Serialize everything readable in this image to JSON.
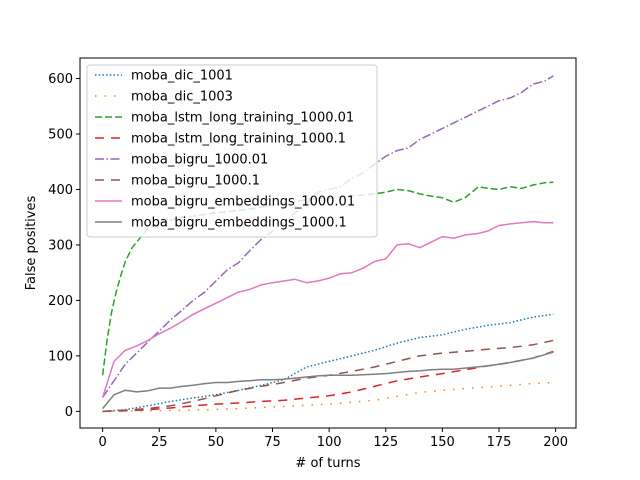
{
  "chart_data": {
    "type": "line",
    "title": "",
    "xlabel": "# of turns",
    "ylabel": "False positives",
    "xlim": [
      -10,
      209
    ],
    "ylim": [
      -30,
      637
    ],
    "xticks": [
      0,
      25,
      50,
      75,
      100,
      125,
      150,
      175,
      200
    ],
    "yticks": [
      0,
      100,
      200,
      300,
      400,
      500,
      600
    ],
    "grid": false,
    "legend_position": "upper-left",
    "series": [
      {
        "name": "moba_dic_1001",
        "color": "#1f77b4",
        "style": "dotted",
        "x": [
          0,
          10,
          20,
          30,
          40,
          50,
          60,
          70,
          80,
          90,
          100,
          110,
          120,
          130,
          140,
          150,
          160,
          170,
          180,
          190,
          199
        ],
        "y": [
          0,
          3,
          10,
          18,
          24,
          30,
          38,
          47,
          57,
          80,
          90,
          100,
          110,
          123,
          133,
          138,
          148,
          155,
          160,
          170,
          175
        ]
      },
      {
        "name": "moba_dic_1003",
        "color": "#ff7f0e",
        "style": "dotted-sparse",
        "x": [
          0,
          20,
          40,
          60,
          80,
          100,
          120,
          130,
          140,
          150,
          160,
          170,
          180,
          190,
          199
        ],
        "y": [
          0,
          1,
          2,
          5,
          9,
          13,
          20,
          27,
          34,
          38,
          41,
          44,
          47,
          50,
          52
        ]
      },
      {
        "name": "moba_lstm_long_training_1000.01",
        "color": "#2ca02c",
        "style": "dashed",
        "x": [
          0,
          2,
          4,
          6,
          8,
          10,
          13,
          16,
          20,
          25,
          30,
          35,
          40,
          45,
          50,
          55,
          60,
          65,
          70,
          75,
          80,
          85,
          90,
          95,
          100,
          105,
          110,
          115,
          120,
          125,
          130,
          135,
          140,
          145,
          150,
          155,
          160,
          163,
          166,
          170,
          175,
          180,
          185,
          190,
          195,
          199
        ],
        "y": [
          65,
          130,
          180,
          215,
          245,
          270,
          295,
          310,
          330,
          340,
          345,
          350,
          352,
          355,
          358,
          360,
          362,
          365,
          368,
          372,
          375,
          378,
          382,
          384,
          385,
          386,
          388,
          390,
          392,
          395,
          400,
          398,
          392,
          388,
          385,
          377,
          385,
          395,
          405,
          402,
          400,
          405,
          402,
          408,
          412,
          413
        ]
      },
      {
        "name": "moba_lstm_long_training_1000.1",
        "color": "#d62728",
        "style": "dashed-long",
        "x": [
          0,
          10,
          20,
          30,
          40,
          50,
          60,
          70,
          80,
          90,
          100,
          110,
          120,
          130,
          140,
          150,
          160,
          170,
          180,
          190,
          199
        ],
        "y": [
          0,
          1,
          3,
          6,
          10,
          13,
          15,
          18,
          20,
          24,
          28,
          35,
          45,
          55,
          62,
          68,
          75,
          82,
          88,
          96,
          108
        ]
      },
      {
        "name": "moba_bigru_1000.01",
        "color": "#9467bd",
        "style": "dashdot",
        "x": [
          0,
          5,
          10,
          15,
          20,
          25,
          30,
          35,
          40,
          45,
          50,
          55,
          60,
          65,
          70,
          75,
          80,
          85,
          90,
          95,
          100,
          105,
          110,
          115,
          120,
          125,
          130,
          135,
          140,
          145,
          150,
          155,
          160,
          165,
          170,
          175,
          180,
          185,
          190,
          195,
          199
        ],
        "y": [
          25,
          55,
          85,
          105,
          125,
          145,
          165,
          182,
          200,
          215,
          235,
          255,
          268,
          290,
          310,
          325,
          340,
          358,
          375,
          395,
          400,
          405,
          420,
          430,
          445,
          460,
          470,
          475,
          490,
          500,
          510,
          520,
          530,
          540,
          550,
          560,
          565,
          575,
          590,
          595,
          605
        ]
      },
      {
        "name": "moba_bigru_1000.1",
        "color": "#8c564b",
        "style": "dashed-long",
        "x": [
          0,
          10,
          20,
          30,
          40,
          50,
          60,
          70,
          80,
          90,
          100,
          110,
          120,
          130,
          140,
          150,
          160,
          170,
          180,
          190,
          199
        ],
        "y": [
          0,
          2,
          5,
          10,
          18,
          28,
          38,
          45,
          52,
          60,
          65,
          72,
          80,
          90,
          100,
          105,
          108,
          112,
          115,
          120,
          128
        ]
      },
      {
        "name": "moba_bigru_embeddings_1000.01",
        "color": "#e377c2",
        "style": "solid",
        "x": [
          0,
          5,
          10,
          15,
          20,
          25,
          30,
          35,
          40,
          45,
          50,
          55,
          60,
          65,
          70,
          75,
          80,
          85,
          90,
          95,
          100,
          105,
          110,
          115,
          120,
          125,
          130,
          135,
          140,
          145,
          150,
          155,
          160,
          165,
          170,
          175,
          180,
          185,
          190,
          195,
          199
        ],
        "y": [
          25,
          90,
          110,
          118,
          128,
          140,
          150,
          162,
          175,
          185,
          195,
          205,
          215,
          220,
          228,
          232,
          235,
          238,
          232,
          235,
          240,
          248,
          250,
          258,
          270,
          275,
          300,
          302,
          295,
          305,
          315,
          312,
          318,
          320,
          325,
          335,
          338,
          340,
          342,
          340,
          340
        ]
      },
      {
        "name": "moba_bigru_embeddings_1000.1",
        "color": "#7f7f7f",
        "style": "solid",
        "x": [
          0,
          5,
          10,
          15,
          20,
          25,
          30,
          35,
          40,
          45,
          50,
          55,
          60,
          65,
          70,
          75,
          80,
          85,
          90,
          95,
          100,
          105,
          110,
          115,
          120,
          125,
          130,
          135,
          140,
          145,
          150,
          155,
          160,
          165,
          170,
          175,
          180,
          185,
          190,
          195,
          199
        ],
        "y": [
          5,
          30,
          38,
          35,
          37,
          42,
          42,
          45,
          47,
          50,
          52,
          52,
          54,
          55,
          57,
          57,
          58,
          60,
          62,
          64,
          65,
          65,
          65,
          66,
          67,
          68,
          70,
          72,
          73,
          75,
          76,
          76,
          78,
          80,
          82,
          85,
          88,
          92,
          96,
          102,
          107
        ]
      }
    ]
  }
}
